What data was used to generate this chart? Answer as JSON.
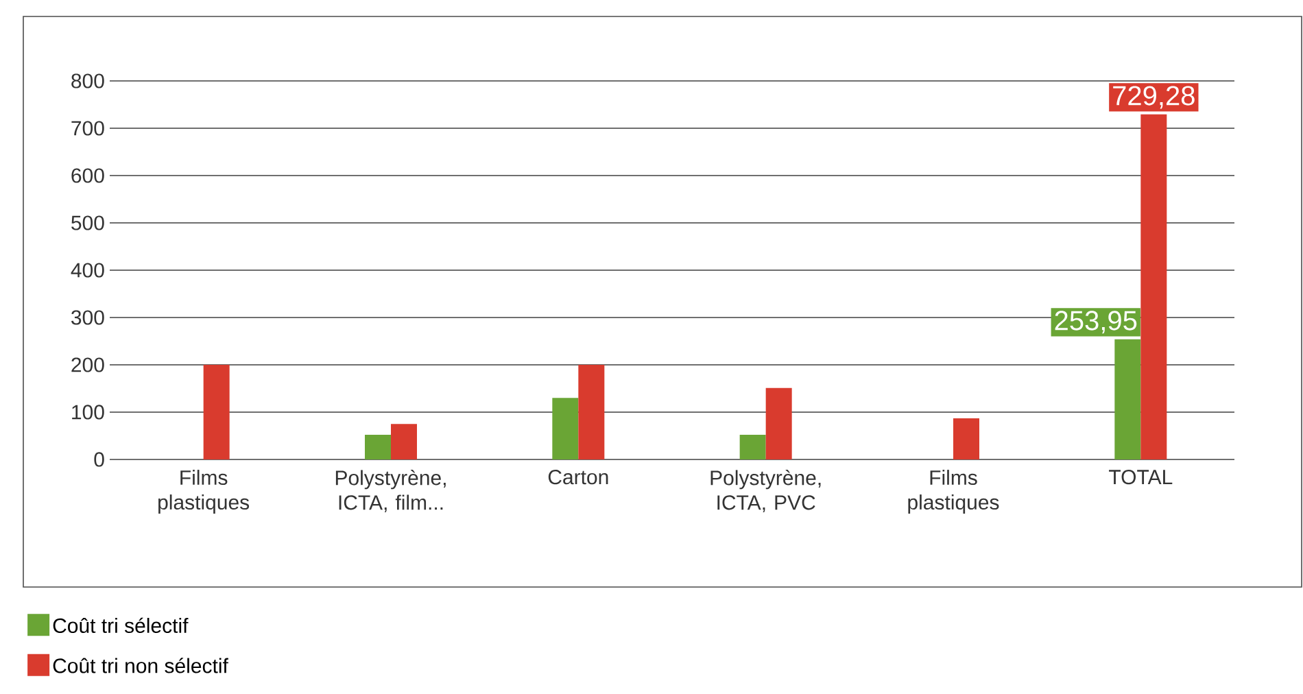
{
  "chart_data": {
    "type": "bar",
    "categories": [
      "Films plastiques",
      "Polystyrène, ICTA, film...",
      "Carton",
      "Polystyrène, ICTA, PVC",
      "Films plastiques",
      "TOTAL"
    ],
    "series": [
      {
        "name": "Coût tri sélectif",
        "color": "#6aa535",
        "values": [
          null,
          52,
          130,
          52,
          null,
          253.95
        ],
        "value_labels": [
          null,
          null,
          null,
          null,
          null,
          "253,95"
        ]
      },
      {
        "name": "Coût tri non sélectif",
        "color": "#d93b2e",
        "values": [
          200,
          75,
          200,
          151,
          87,
          729.28
        ],
        "value_labels": [
          null,
          null,
          null,
          null,
          null,
          "729,28"
        ]
      }
    ],
    "ylim": [
      0,
      800
    ],
    "yticks": [
      0,
      100,
      200,
      300,
      400,
      500,
      600,
      700,
      800
    ],
    "grid": "y",
    "legend": "bottom left"
  }
}
